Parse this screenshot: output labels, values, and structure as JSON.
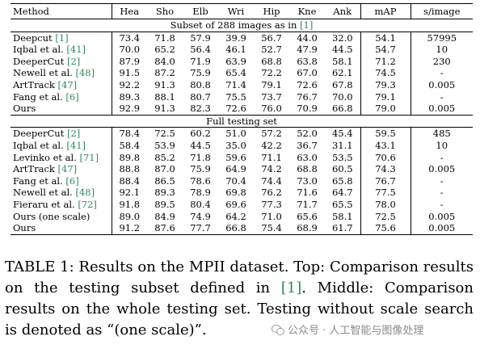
{
  "table": {
    "headers": [
      "Method",
      "Hea",
      "Sho",
      "Elb",
      "Wri",
      "Hip",
      "Kne",
      "Ank",
      "mAP",
      "s/image"
    ],
    "sections": [
      {
        "title": "Subset of 288 images as in ",
        "title_ref": "[1]",
        "rows": [
          {
            "method": "Deepcut ",
            "ref": "[1]",
            "values": [
              "73.4",
              "71.8",
              "57.9",
              "39.9",
              "56.7",
              "44.0",
              "32.0",
              "54.1",
              "57995"
            ],
            "bold": []
          },
          {
            "method": "Iqbal et al. ",
            "ref": "[41]",
            "values": [
              "70.0",
              "65.2",
              "56.4",
              "46.1",
              "52.7",
              "47.9",
              "44.5",
              "54.7",
              "10"
            ],
            "bold": []
          },
          {
            "method": "DeeperCut ",
            "ref": "[2]",
            "values": [
              "87.9",
              "84.0",
              "71.9",
              "63.9",
              "68.8",
              "63.8",
              "58.1",
              "71.2",
              "230"
            ],
            "bold": []
          },
          {
            "method": "Newell et al. ",
            "ref": "[48]",
            "values": [
              "91.5",
              "87.2",
              "75.9",
              "65.4",
              "72.2",
              "67.0",
              "62.1",
              "74.5",
              "-"
            ],
            "bold": []
          },
          {
            "method": "ArtTrack ",
            "ref": "[47]",
            "values": [
              "92.2",
              "91.3",
              "80.8",
              "71.4",
              "79.1",
              "72.6",
              "67.8",
              "79.3",
              "0.005"
            ],
            "bold": [
              1,
              4,
              7,
              8
            ]
          },
          {
            "method": "Fang et al. ",
            "ref": "[6]",
            "values": [
              "89.3",
              "88.1",
              "80.7",
              "75.5",
              "73.7",
              "76.7",
              "70.0",
              "79.1",
              "-"
            ],
            "bold": [
              5,
              6
            ]
          },
          {
            "method": "Ours",
            "ref": "",
            "values": [
              "92.9",
              "91.3",
              "82.3",
              "72.6",
              "76.0",
              "70.9",
              "66.8",
              "79.0",
              "0.005"
            ],
            "bold": [
              0,
              1,
              2,
              8
            ]
          }
        ]
      },
      {
        "title": "Full testing set",
        "title_ref": "",
        "rows": [
          {
            "method": "DeeperCut ",
            "ref": "[2]",
            "values": [
              "78.4",
              "72.5",
              "60.2",
              "51.0",
              "57.2",
              "52.0",
              "45.4",
              "59.5",
              "485"
            ],
            "bold": []
          },
          {
            "method": "Iqbal et al. ",
            "ref": "[41]",
            "values": [
              "58.4",
              "53.9",
              "44.5",
              "35.0",
              "42.2",
              "36.7",
              "31.1",
              "43.1",
              "10"
            ],
            "bold": []
          },
          {
            "method": "Levinko et al. ",
            "ref": "[71]",
            "values": [
              "89.8",
              "85.2",
              "71.8",
              "59.6",
              "71.1",
              "63.0",
              "53.5",
              "70.6",
              "-"
            ],
            "bold": []
          },
          {
            "method": "ArtTrack ",
            "ref": "[47]",
            "values": [
              "88.8",
              "87.0",
              "75.9",
              "64.9",
              "74.2",
              "68.8",
              "60.5",
              "74.3",
              "0.005"
            ],
            "bold": [
              8
            ]
          },
          {
            "method": "Fang et al. ",
            "ref": "[6]",
            "values": [
              "88.4",
              "86.5",
              "78.6",
              "70.4",
              "74.4",
              "73.0",
              "65.8",
              "76.7",
              "-"
            ],
            "bold": [
              3,
              5,
              6
            ]
          },
          {
            "method": "Newell et al. ",
            "ref": "[48]",
            "values": [
              "92.1",
              "89.3",
              "78.9",
              "69.8",
              "76.2",
              "71.6",
              "64.7",
              "77.5",
              "-"
            ],
            "bold": [
              0
            ]
          },
          {
            "method": "Fieraru et al. ",
            "ref": "[72]",
            "values": [
              "91.8",
              "89.5",
              "80.4",
              "69.6",
              "77.3",
              "71.7",
              "65.5",
              "78.0",
              "-"
            ],
            "bold": [
              1,
              2,
              4,
              7
            ]
          },
          {
            "method": "Ours (one scale)",
            "ref": "",
            "values": [
              "89.0",
              "84.9",
              "74.9",
              "64.2",
              "71.0",
              "65.6",
              "58.1",
              "72.5",
              "0.005"
            ],
            "bold": []
          },
          {
            "method": "Ours",
            "ref": "",
            "values": [
              "91.2",
              "87.6",
              "77.7",
              "66.8",
              "75.4",
              "68.9",
              "61.7",
              "75.6",
              "0.005"
            ],
            "bold": [
              8
            ]
          }
        ]
      }
    ]
  },
  "caption": {
    "label": "TABLE 1",
    "text_before_ref": ": Results on the MPII dataset. Top: Comparison results on the testing subset defined in ",
    "ref": "[1]",
    "text_after_ref": ". Middle: Comparison results on the whole testing set. Testing without scale search is denoted as “(one scale)”."
  },
  "watermark": {
    "icon": "wechat-icon",
    "text": "公众号 · 人工智能与图像处理"
  }
}
